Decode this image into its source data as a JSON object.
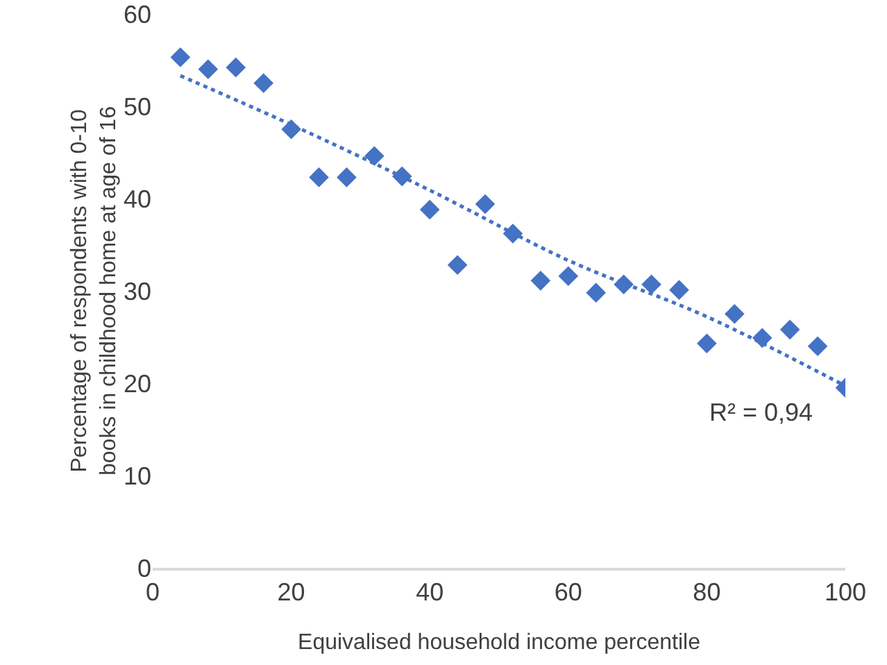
{
  "chart_data": {
    "type": "scatter",
    "xlabel": "Equivalised household income percentile",
    "ylabel": "Percentage of respondents with 0-10\nbooks in childhood home at age of 16",
    "xlim": [
      0,
      100
    ],
    "xticks": [
      0,
      20,
      40,
      60,
      80,
      100
    ],
    "ylim": [
      0,
      60
    ],
    "yticks": [
      0,
      10,
      20,
      30,
      40,
      50,
      60
    ],
    "annotations": [
      "R² = 0,94"
    ],
    "series": [
      {
        "type": "scatter",
        "color": "#4472c4",
        "marker": "diamond",
        "x": [
          4,
          8,
          12,
          16,
          20,
          24,
          28,
          32,
          36,
          40,
          44,
          48,
          52,
          56,
          60,
          64,
          68,
          72,
          76,
          80,
          84,
          88,
          92,
          96,
          100
        ],
        "values": [
          55.3,
          54.0,
          54.2,
          52.5,
          47.5,
          42.3,
          42.3,
          44.6,
          42.4,
          38.8,
          32.8,
          39.4,
          36.2,
          31.1,
          31.6,
          29.8,
          30.7,
          30.7,
          30.1,
          24.3,
          27.5,
          24.9,
          25.8,
          24.0,
          19.5
        ]
      },
      {
        "type": "line",
        "color": "#4472c4",
        "line_style": "dotted",
        "marker": "none",
        "x": [
          4,
          20,
          40,
          60,
          80,
          100
        ],
        "values": [
          53.3,
          48.0,
          40.9,
          33.3,
          27.2,
          19.7
        ]
      }
    ]
  }
}
